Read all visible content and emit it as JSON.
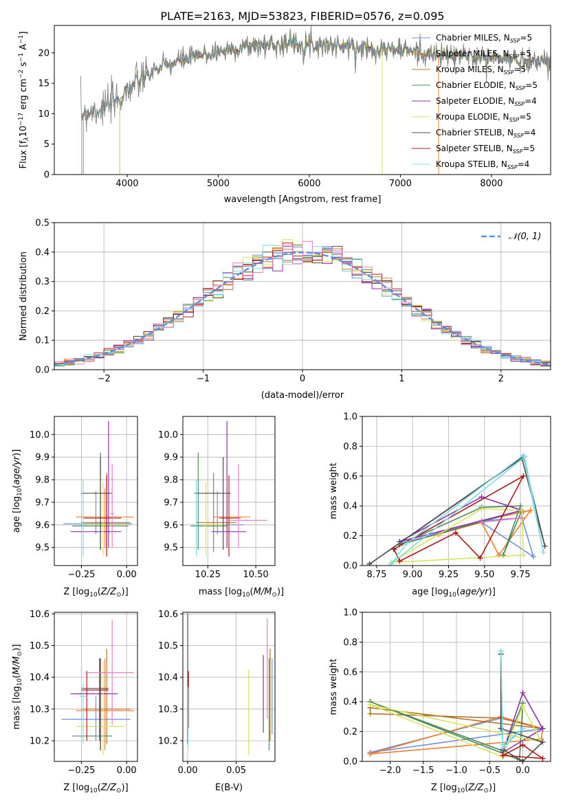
{
  "figure_title": "PLATE=2163, MJD=53823, FIBERID=0576, z=0.095",
  "colors": {
    "Chabrier MILES": "#6f8fd8",
    "Salpeter MILES": "#f07f2b",
    "Kroupa MILES": "#b5762a",
    "Chabrier ELODIE": "#4f8a55",
    "Salpeter ELODIE": "#8b2fb0",
    "Kroupa ELODIE": "#d6e35a",
    "Chabrier STELIB": "#4b4b4b",
    "Salpeter STELIB": "#b01818",
    "Kroupa STELIB": "#7fdbe3",
    "pink_extra": "#e37fbf",
    "gaussian": "#5b8fd6"
  },
  "chart_data": [
    {
      "id": "spectrum",
      "type": "line",
      "title": "PLATE=2163, MJD=53823, FIBERID=0576, z=0.095",
      "xlabel": "wavelength [Angstrom, rest frame]",
      "ylabel_parts": [
        "Flux [f",
        "λ",
        "10",
        "−17",
        " erg cm",
        "−2",
        " s",
        "−1",
        " A",
        "−1",
        "]"
      ],
      "xlim": [
        3200,
        8650
      ],
      "ylim": [
        0,
        24.5
      ],
      "xticks": [
        4000,
        5000,
        6000,
        7000,
        8000
      ],
      "yticks": [
        0,
        5,
        10,
        15,
        20
      ],
      "grid": false,
      "legend_position": "top-right",
      "continuum_knots": [
        [
          3490,
          10.0
        ],
        [
          3700,
          10.8
        ],
        [
          3900,
          12.2
        ],
        [
          4000,
          14.0
        ],
        [
          4100,
          15.0
        ],
        [
          4300,
          17.2
        ],
        [
          4600,
          18.8
        ],
        [
          5000,
          20.2
        ],
        [
          5400,
          21.2
        ],
        [
          5800,
          21.6
        ],
        [
          6200,
          21.3
        ],
        [
          6600,
          20.8
        ],
        [
          7000,
          20.5
        ],
        [
          7400,
          19.6
        ],
        [
          7800,
          19.4
        ],
        [
          8200,
          18.9
        ],
        [
          8600,
          18.6
        ]
      ],
      "series": [
        {
          "name": "Chabrier MILES",
          "nssp": "5",
          "start": 3500
        },
        {
          "name": "Salpeter MILES",
          "nssp": "5",
          "start": 3500
        },
        {
          "name": "Kroupa MILES",
          "nssp": "5",
          "start": 3500
        },
        {
          "name": "Chabrier ELODIE",
          "nssp": "5",
          "start": 3920
        },
        {
          "name": "Salpeter ELODIE",
          "nssp": "4",
          "start": 3920
        },
        {
          "name": "Kroupa ELODIE",
          "nssp": "5",
          "start": 3920
        },
        {
          "name": "Chabrier STELIB",
          "nssp": "4",
          "start": 3500
        },
        {
          "name": "Salpeter STELIB",
          "nssp": "5",
          "start": 3500
        },
        {
          "name": "Kroupa STELIB",
          "nssp": "4",
          "start": 3500
        }
      ],
      "data_line": {
        "name": "data",
        "color": "#7a7a7a",
        "start": 3490,
        "end": 8650
      }
    },
    {
      "id": "residuals",
      "type": "histogram",
      "xlabel": "(data-model)/error",
      "ylabel": "Normed distribution",
      "xlim": [
        -2.5,
        2.5
      ],
      "ylim": [
        0,
        0.5
      ],
      "xticks": [
        -2,
        -1,
        0,
        1,
        2
      ],
      "yticks": [
        0.0,
        0.1,
        0.2,
        0.3,
        0.4,
        0.5
      ],
      "grid": true,
      "bin_width": 0.1,
      "legend": "𝒩(0, 1)",
      "legend_position": "top-right",
      "series_names": [
        "Chabrier MILES",
        "Salpeter MILES",
        "Kroupa MILES",
        "Chabrier ELODIE",
        "Salpeter ELODIE",
        "Kroupa ELODIE",
        "Chabrier STELIB",
        "Salpeter STELIB",
        "Kroupa STELIB",
        "pink_extra"
      ]
    },
    {
      "id": "age_vs_Z",
      "type": "errorbar",
      "xlabel": "Z [log10(Z/Z⊙)]",
      "ylabel": "age [log10(age/yr)]",
      "xlim": [
        -0.4,
        0.06
      ],
      "ylim": [
        9.42,
        10.08
      ],
      "xticks": [
        -0.25,
        0.0
      ],
      "xticklabels": [
        "−0.25",
        "0.00"
      ],
      "yticks": [
        9.5,
        9.6,
        9.7,
        9.8,
        9.9,
        10.0
      ],
      "grid": true,
      "points": [
        {
          "s": "Chabrier MILES",
          "x": -0.17,
          "xlo": -0.35,
          "xhi": 0.03,
          "y": 9.605,
          "ylo": 9.56,
          "yhi": 9.75
        },
        {
          "s": "Salpeter MILES",
          "x": -0.12,
          "xlo": -0.28,
          "xhi": 0.04,
          "y": 9.635,
          "ylo": 9.5,
          "yhi": 9.76
        },
        {
          "s": "Kroupa MILES",
          "x": -0.11,
          "xlo": -0.25,
          "xhi": 0.02,
          "y": 9.61,
          "ylo": 9.48,
          "yhi": 9.83
        },
        {
          "s": "Chabrier ELODIE",
          "x": -0.145,
          "xlo": -0.3,
          "xhi": 0.01,
          "y": 9.595,
          "ylo": 9.49,
          "yhi": 9.92
        },
        {
          "s": "Salpeter ELODIE",
          "x": -0.1,
          "xlo": -0.31,
          "xhi": -0.03,
          "y": 9.57,
          "ylo": 9.5,
          "yhi": 10.06
        },
        {
          "s": "Kroupa ELODIE",
          "x": -0.13,
          "xlo": -0.26,
          "xhi": -0.01,
          "y": 9.6,
          "ylo": 9.46,
          "yhi": 9.79
        },
        {
          "s": "Chabrier STELIB",
          "x": -0.145,
          "xlo": -0.25,
          "xhi": -0.08,
          "y": 9.74,
          "ylo": 9.49,
          "yhi": 9.9
        },
        {
          "s": "Salpeter STELIB",
          "x": -0.11,
          "xlo": -0.24,
          "xhi": -0.03,
          "y": 9.63,
          "ylo": 9.46,
          "yhi": 9.82
        },
        {
          "s": "Kroupa STELIB",
          "x": -0.24,
          "xlo": -0.26,
          "xhi": -0.22,
          "y": 9.6,
          "ylo": 9.46,
          "yhi": 9.8
        },
        {
          "s": "pink_extra",
          "x": -0.08,
          "xlo": -0.09,
          "xhi": -0.07,
          "y": 9.65,
          "ylo": 9.5,
          "yhi": 9.87
        }
      ]
    },
    {
      "id": "age_vs_mass",
      "type": "errorbar",
      "xlabel": "mass [log10(M/M⊙)]",
      "ylabel": "",
      "xlim": [
        10.12,
        10.6
      ],
      "ylim": [
        9.42,
        10.08
      ],
      "xticks": [
        10.25,
        10.5
      ],
      "xticklabels": [
        "10.25",
        "10.50"
      ],
      "yticks": [
        9.5,
        9.6,
        9.7,
        9.8,
        9.9,
        10.0
      ],
      "grid": true,
      "points": [
        {
          "s": "Chabrier MILES",
          "x": 10.3,
          "xlo": 10.19,
          "xhi": 10.44,
          "y": 9.6,
          "ylo": 9.56,
          "yhi": 9.75
        },
        {
          "s": "Salpeter MILES",
          "x": 10.35,
          "xlo": 10.28,
          "xhi": 10.47,
          "y": 9.635,
          "ylo": 9.5,
          "yhi": 9.76
        },
        {
          "s": "Kroupa MILES",
          "x": 10.28,
          "xlo": 10.19,
          "xhi": 10.4,
          "y": 9.61,
          "ylo": 9.48,
          "yhi": 9.83
        },
        {
          "s": "Chabrier ELODIE",
          "x": 10.2,
          "xlo": 10.16,
          "xhi": 10.35,
          "y": 9.595,
          "ylo": 9.49,
          "yhi": 9.92
        },
        {
          "s": "Salpeter ELODIE",
          "x": 10.35,
          "xlo": 10.27,
          "xhi": 10.45,
          "y": 9.57,
          "ylo": 9.5,
          "yhi": 10.06
        },
        {
          "s": "Kroupa ELODIE",
          "x": 10.24,
          "xlo": 10.17,
          "xhi": 10.34,
          "y": 9.6,
          "ylo": 9.46,
          "yhi": 9.79
        },
        {
          "s": "Chabrier STELIB",
          "x": 10.33,
          "xlo": 10.18,
          "xhi": 10.37,
          "y": 9.74,
          "ylo": 9.49,
          "yhi": 9.9
        },
        {
          "s": "Salpeter STELIB",
          "x": 10.36,
          "xlo": 10.31,
          "xhi": 10.42,
          "y": 9.63,
          "ylo": 9.46,
          "yhi": 9.82
        },
        {
          "s": "Kroupa STELIB",
          "x": 10.19,
          "xlo": 10.17,
          "xhi": 10.21,
          "y": 9.6,
          "ylo": 9.46,
          "yhi": 9.8
        },
        {
          "s": "pink_extra",
          "x": 10.41,
          "xlo": 10.36,
          "xhi": 10.56,
          "y": 9.62,
          "ylo": 9.5,
          "yhi": 9.87
        }
      ]
    },
    {
      "id": "mass_weight_vs_age",
      "type": "line",
      "xlabel": "age [log10(age/yr)]",
      "ylabel": "mass weight",
      "xlim": [
        8.65,
        9.96
      ],
      "ylim": [
        0,
        1.0
      ],
      "xticks": [
        8.75,
        9.0,
        9.25,
        9.5,
        9.75
      ],
      "xticklabels": [
        "8.75",
        "9.00",
        "9.25",
        "9.50",
        "9.75"
      ],
      "yticks": [
        0.0,
        0.2,
        0.4,
        0.6,
        0.8,
        1.0
      ],
      "grid": true,
      "series": [
        {
          "s": "Chabrier MILES",
          "x": [
            8.93,
            9.48,
            9.76,
            9.84,
            9.48,
            8.93
          ],
          "y": [
            0.15,
            0.3,
            0.32,
            0.06,
            0.29,
            0.15
          ]
        },
        {
          "s": "Salpeter MILES",
          "x": [
            9.18,
            9.48,
            9.6,
            9.82,
            9.77,
            9.48,
            9.18
          ],
          "y": [
            0.21,
            0.29,
            0.07,
            0.37,
            0.36,
            0.3,
            0.21
          ]
        },
        {
          "s": "Chabrier ELODIE",
          "x": [
            8.91,
            9.48,
            9.75,
            9.63,
            9.76,
            8.91
          ],
          "y": [
            0.14,
            0.39,
            0.4,
            0.07,
            0.37,
            0.14
          ]
        },
        {
          "s": "Salpeter ELODIE",
          "x": [
            8.91,
            9.48,
            9.76,
            8.91
          ],
          "y": [
            0.16,
            0.46,
            0.37,
            0.16
          ]
        },
        {
          "s": "Kroupa ELODIE",
          "x": [
            8.85,
            9.48,
            9.76,
            9.77,
            8.85
          ],
          "y": [
            0.02,
            0.38,
            0.37,
            0.07,
            0.02
          ]
        },
        {
          "s": "Chabrier STELIB",
          "x": [
            8.7,
            9.76,
            9.92,
            9.77,
            8.7
          ],
          "y": [
            0.01,
            0.72,
            0.13,
            0.73,
            0.01
          ]
        },
        {
          "s": "Salpeter STELIB",
          "x": [
            8.87,
            8.91,
            9.3,
            9.47,
            9.77,
            8.87
          ],
          "y": [
            0.11,
            0.03,
            0.22,
            0.05,
            0.6,
            0.11
          ]
        },
        {
          "s": "Kroupa STELIB",
          "x": [
            8.85,
            8.96,
            9.77,
            9.91,
            9.78,
            8.85
          ],
          "y": [
            0.01,
            0.15,
            0.74,
            0.09,
            0.73,
            0.01
          ]
        },
        {
          "s": "pink_extra",
          "x": [
            9.48,
            9.76
          ],
          "y": [
            0.29,
            0.32
          ]
        }
      ]
    },
    {
      "id": "mass_vs_Z",
      "type": "errorbar",
      "xlabel": "Z [log10(Z/Z⊙)]",
      "ylabel": "mass [log10(M/M⊙)]",
      "xlim": [
        -0.4,
        0.06
      ],
      "ylim": [
        10.135,
        10.605
      ],
      "xticks": [
        -0.25,
        0.0
      ],
      "xticklabels": [
        "−0.25",
        "0.00"
      ],
      "yticks": [
        10.2,
        10.3,
        10.4,
        10.5,
        10.6
      ],
      "grid": true,
      "points": [
        {
          "s": "Chabrier MILES",
          "x": -0.17,
          "xlo": -0.36,
          "xhi": 0.02,
          "y": 10.268,
          "ylo": 10.2,
          "yhi": 10.34
        },
        {
          "s": "Salpeter MILES",
          "x": -0.12,
          "xlo": -0.28,
          "xhi": 0.04,
          "y": 10.295,
          "ylo": 10.17,
          "yhi": 10.46
        },
        {
          "s": "Kroupa MILES",
          "x": -0.11,
          "xlo": -0.25,
          "xhi": 0.02,
          "y": 10.3,
          "ylo": 10.19,
          "yhi": 10.49
        },
        {
          "s": "Chabrier ELODIE",
          "x": -0.145,
          "xlo": -0.3,
          "xhi": -0.08,
          "y": 10.215,
          "ylo": 10.17,
          "yhi": 10.46
        },
        {
          "s": "Salpeter ELODIE",
          "x": -0.15,
          "xlo": -0.31,
          "xhi": -0.05,
          "y": 10.348,
          "ylo": 10.2,
          "yhi": 10.46
        },
        {
          "s": "Kroupa ELODIE",
          "x": -0.13,
          "xlo": -0.28,
          "xhi": -0.01,
          "y": 10.245,
          "ylo": 10.155,
          "yhi": 10.45
        },
        {
          "s": "Chabrier STELIB",
          "x": -0.145,
          "xlo": -0.25,
          "xhi": -0.1,
          "y": 10.365,
          "ylo": 10.17,
          "yhi": 10.46
        },
        {
          "s": "Salpeter STELIB",
          "x": -0.22,
          "xlo": -0.25,
          "xhi": -0.1,
          "y": 10.36,
          "ylo": 10.2,
          "yhi": 10.42
        },
        {
          "s": "Kroupa STELIB",
          "x": -0.24,
          "xlo": -0.26,
          "xhi": -0.22,
          "y": 10.34,
          "ylo": 10.19,
          "yhi": 10.38
        },
        {
          "s": "pink_extra",
          "x": -0.08,
          "xlo": -0.23,
          "xhi": 0.04,
          "y": 10.415,
          "ylo": 10.25,
          "yhi": 10.58
        }
      ]
    },
    {
      "id": "mass_vs_EBV",
      "type": "errorbar",
      "xlabel": "E(B-V)",
      "ylabel": "",
      "xlim": [
        -0.005,
        0.09
      ],
      "ylim": [
        10.135,
        10.605
      ],
      "xticks": [
        0.0,
        0.05
      ],
      "xticklabels": [
        "0.00",
        "0.05"
      ],
      "yticks": [
        10.2,
        10.3,
        10.4,
        10.5,
        10.6
      ],
      "grid": true,
      "points": [
        {
          "s": "Kroupa ELODIE",
          "x": 0.063,
          "y": 10.25,
          "ylo": 10.155,
          "yhi": 10.425
        },
        {
          "s": "Salpeter ELODIE",
          "x": 0.078,
          "y": 10.35,
          "ylo": 10.225,
          "yhi": 10.47
        },
        {
          "s": "pink_extra",
          "x": 0.082,
          "y": 10.44,
          "ylo": 10.27,
          "yhi": 10.585
        },
        {
          "s": "Chabrier ELODIE",
          "x": 0.084,
          "y": 10.25,
          "ylo": 10.17,
          "yhi": 10.46
        },
        {
          "s": "Kroupa MILES",
          "x": 0.085,
          "y": 10.33,
          "ylo": 10.2,
          "yhi": 10.49
        },
        {
          "s": "Chabrier MILES",
          "x": 0.087,
          "y": 10.32,
          "ylo": 10.22,
          "yhi": 10.46
        },
        {
          "s": "Salpeter STELIB",
          "x": 0.0008,
          "y": 10.33,
          "ylo": 10.24,
          "yhi": 10.42
        },
        {
          "s": "Chabrier STELIB",
          "x": 0.0,
          "y": 10.36,
          "ylo": 10.19,
          "yhi": 10.6
        },
        {
          "s": "Kroupa STELIB",
          "x": 0.0004,
          "y": 10.26,
          "ylo": 10.18,
          "yhi": 10.37
        }
      ]
    },
    {
      "id": "mass_weight_vs_Z",
      "type": "line",
      "xlabel": "Z [log10(Z/Z⊙)]",
      "ylabel": "mass weight",
      "xlim": [
        -2.42,
        0.42
      ],
      "ylim": [
        0,
        1.0
      ],
      "xticks": [
        -2.0,
        -1.5,
        -1.0,
        -0.5,
        0.0
      ],
      "xticklabels": [
        "−2.0",
        "−1.5",
        "−1.0",
        "−0.5",
        "0.0"
      ],
      "yticks": [
        0.0,
        0.2,
        0.4,
        0.6,
        0.8,
        1.0
      ],
      "grid": true,
      "series": [
        {
          "s": "Chabrier MILES",
          "x": [
            -2.3,
            -0.33,
            0.3,
            -2.3
          ],
          "y": [
            0.06,
            0.29,
            0.22,
            0.06
          ]
        },
        {
          "s": "Salpeter MILES",
          "x": [
            -2.3,
            -0.33,
            0.3,
            0.28,
            -2.3
          ],
          "y": [
            0.05,
            0.3,
            0.22,
            0.15,
            0.05
          ]
        },
        {
          "s": "Kroupa MILES",
          "x": [
            -2.3,
            -2.3,
            -0.33,
            0.3,
            -2.3
          ],
          "y": [
            0.36,
            0.32,
            0.29,
            0.22,
            0.36
          ]
        },
        {
          "s": "Chabrier ELODIE",
          "x": [
            -2.3,
            -0.3,
            0.0,
            -0.05,
            -2.3
          ],
          "y": [
            0.4,
            0.07,
            0.39,
            0.01,
            0.4
          ]
        },
        {
          "s": "Salpeter ELODIE",
          "x": [
            -0.3,
            0.0,
            0.3,
            -0.3
          ],
          "y": [
            0.06,
            0.46,
            0.22,
            0.06
          ]
        },
        {
          "s": "Kroupa ELODIE",
          "x": [
            -2.3,
            -0.3,
            0.0,
            0.28,
            -2.3
          ],
          "y": [
            0.38,
            0.03,
            0.37,
            0.13,
            0.38
          ]
        },
        {
          "s": "Chabrier STELIB",
          "x": [
            -0.33,
            -0.33,
            -0.3,
            0.0,
            0.3,
            -0.33
          ],
          "y": [
            0.22,
            0.72,
            0.08,
            0.0,
            0.13,
            0.22
          ]
        },
        {
          "s": "Salpeter STELIB",
          "x": [
            -0.3,
            0.0,
            0.3,
            -0.3
          ],
          "y": [
            0.04,
            0.11,
            0.02,
            0.04
          ]
        },
        {
          "s": "Kroupa STELIB",
          "x": [
            -0.33,
            -0.3,
            0.0,
            -0.3,
            -0.33
          ],
          "y": [
            0.74,
            0.09,
            0.22,
            0.11,
            0.74
          ]
        }
      ]
    }
  ]
}
